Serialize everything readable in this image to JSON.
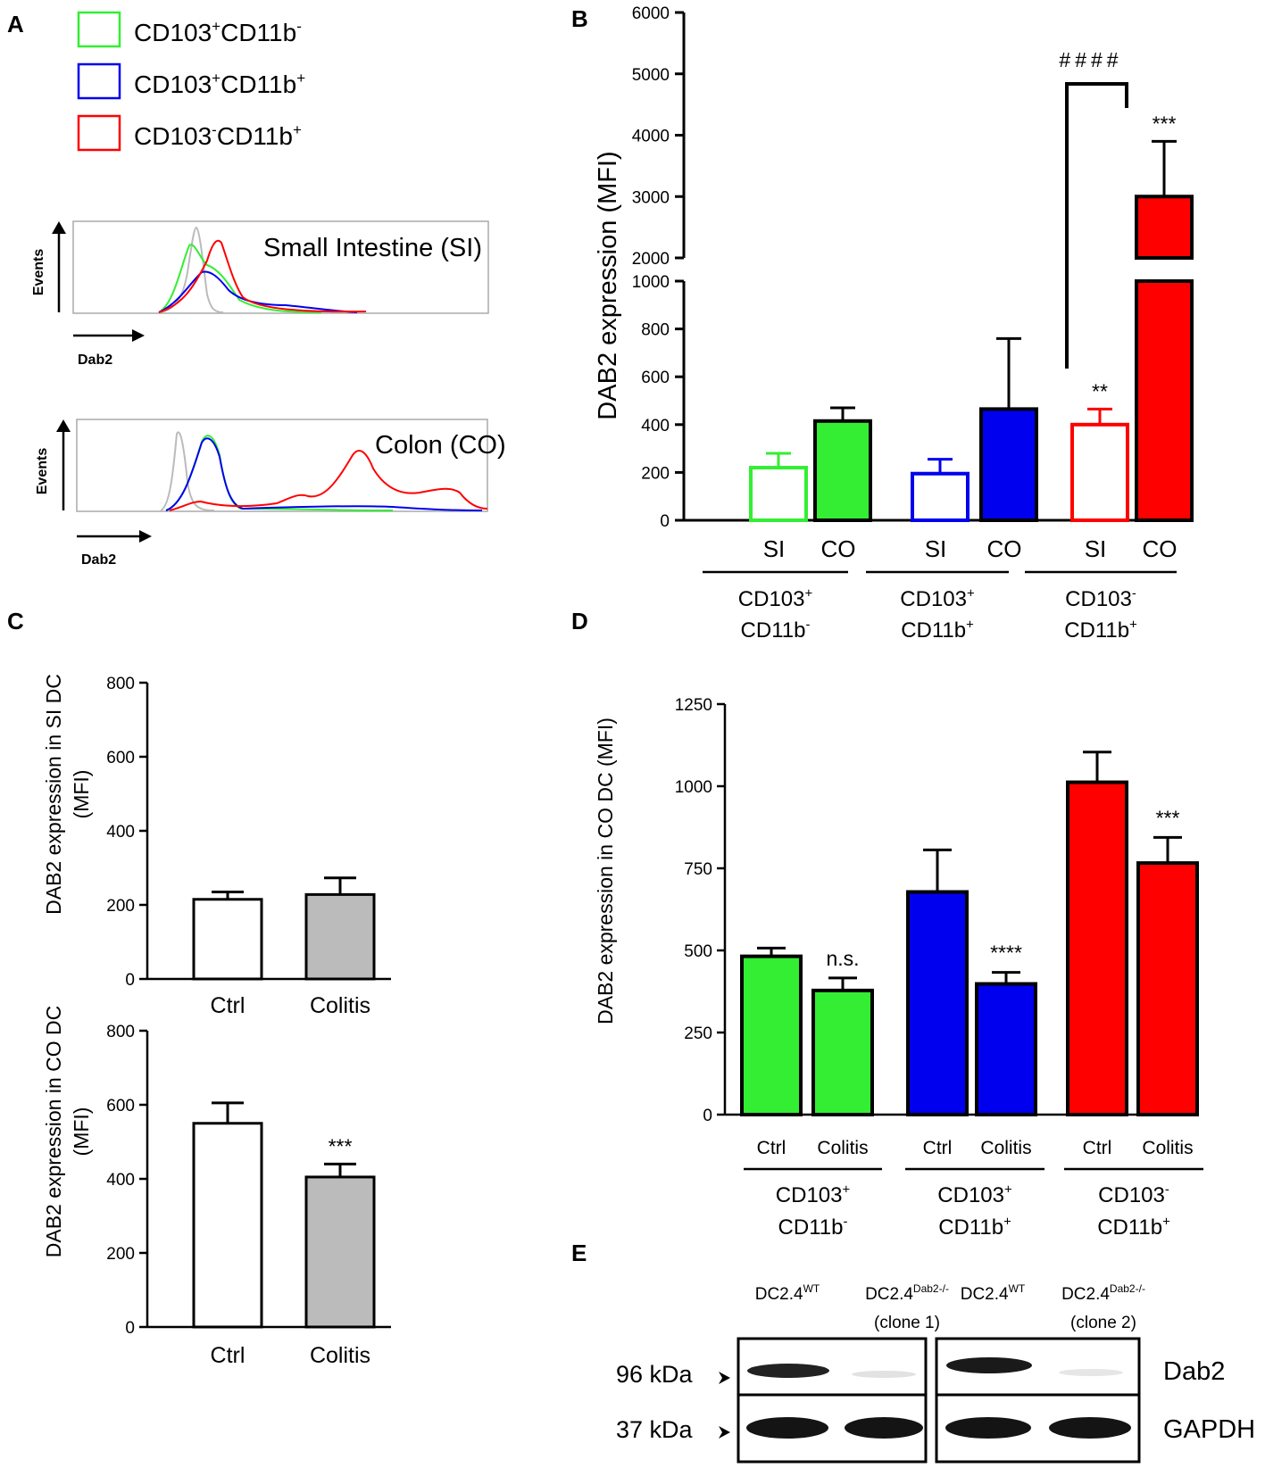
{
  "panel_labels": {
    "a": "A",
    "b": "B",
    "c": "C",
    "d": "D",
    "e": "E"
  },
  "colors": {
    "green": "#33ee33",
    "blue": "#0000ee",
    "red": "#ff0000",
    "grey": "#bbbbbb",
    "black": "#000000"
  },
  "chart_data": [
    {
      "id": "A",
      "type": "histogram",
      "legend": [
        {
          "sup_a": "+",
          "sup_b": "-",
          "color": "#33ee33"
        },
        {
          "sup_a": "+",
          "sup_b": "+",
          "color": "#0000ee"
        },
        {
          "sup_a": "-",
          "sup_b": "+",
          "color": "#ff0000"
        }
      ],
      "legend_main_a": "CD103",
      "legend_main_b": "CD11b",
      "plots": [
        {
          "title": "Small Intestine (SI)",
          "ylabel": "Events",
          "xlabel": "Dab2"
        },
        {
          "title": "Colon (CO)",
          "ylabel": "Events",
          "xlabel": "Dab2"
        }
      ]
    },
    {
      "id": "B",
      "type": "bar",
      "ylabel": "DAB2 expression (MFI)",
      "ylim_lower": [
        0,
        1000
      ],
      "ylim_upper": [
        2000,
        6000
      ],
      "yticks_lower": [
        "0",
        "200",
        "400",
        "600",
        "800",
        "1000"
      ],
      "yticks_upper": [
        "2000",
        "3000",
        "4000",
        "5000",
        "6000"
      ],
      "bars": [
        {
          "label": "SI",
          "value": 220,
          "error": 60,
          "color": "#33ee33",
          "filled": false,
          "annotation": ""
        },
        {
          "label": "CO",
          "value": 415,
          "error": 55,
          "color": "#33ee33",
          "filled": true,
          "annotation": ""
        },
        {
          "label": "SI",
          "value": 195,
          "error": 60,
          "color": "#0000ee",
          "filled": false,
          "annotation": ""
        },
        {
          "label": "CO",
          "value": 465,
          "error": 295,
          "color": "#0000ee",
          "filled": true,
          "annotation": ""
        },
        {
          "label": "SI",
          "value": 400,
          "error": 65,
          "color": "#ff0000",
          "filled": false,
          "annotation": "**"
        },
        {
          "label": "CO",
          "value": 3000,
          "error": 900,
          "color": "#ff0000",
          "filled": true,
          "annotation": "***"
        }
      ],
      "groups": [
        {
          "line1_main": "CD103",
          "line1_sup": "+",
          "line2_main": "CD11b",
          "line2_sup": "-"
        },
        {
          "line1_main": "CD103",
          "line1_sup": "+",
          "line2_main": "CD11b",
          "line2_sup": "+"
        },
        {
          "line1_main": "CD103",
          "line1_sup": "-",
          "line2_main": "CD11b",
          "line2_sup": "+"
        }
      ],
      "bracket_label": "####"
    },
    {
      "id": "C-top",
      "type": "bar",
      "ylabel_line1": "DAB2 expression in SI DC",
      "ylabel_line2": "(MFI)",
      "ylim": [
        0,
        800
      ],
      "yticks": [
        "0",
        "200",
        "400",
        "600",
        "800"
      ],
      "bars": [
        {
          "label": "Ctrl",
          "value": 215,
          "error": 20,
          "color": "#ffffff",
          "annotation": ""
        },
        {
          "label": "Colitis",
          "value": 228,
          "error": 45,
          "color": "#bbbbbb",
          "annotation": ""
        }
      ]
    },
    {
      "id": "C-bottom",
      "type": "bar",
      "ylabel_line1": "DAB2 expression in CO DC",
      "ylabel_line2": "(MFI)",
      "ylim": [
        0,
        800
      ],
      "yticks": [
        "0",
        "200",
        "400",
        "600",
        "800"
      ],
      "bars": [
        {
          "label": "Ctrl",
          "value": 550,
          "error": 55,
          "color": "#ffffff",
          "annotation": ""
        },
        {
          "label": "Colitis",
          "value": 405,
          "error": 35,
          "color": "#bbbbbb",
          "annotation": "***"
        }
      ]
    },
    {
      "id": "D",
      "type": "bar",
      "ylabel": "DAB2 expression in CO DC  (MFI)",
      "ylim": [
        0,
        1250
      ],
      "yticks": [
        "0",
        "250",
        "500",
        "750",
        "1000",
        "1250"
      ],
      "bars": [
        {
          "label": "Ctrl",
          "value": 482,
          "error": 25,
          "color": "#33ee33",
          "annotation": ""
        },
        {
          "label": "Colitis",
          "value": 378,
          "error": 38,
          "color": "#33ee33",
          "annotation": "n.s."
        },
        {
          "label": "Ctrl",
          "value": 678,
          "error": 128,
          "color": "#0000ee",
          "annotation": ""
        },
        {
          "label": "Colitis",
          "value": 398,
          "error": 35,
          "color": "#0000ee",
          "annotation": "****"
        },
        {
          "label": "Ctrl",
          "value": 1012,
          "error": 92,
          "color": "#ff0000",
          "annotation": ""
        },
        {
          "label": "Colitis",
          "value": 766,
          "error": 78,
          "color": "#ff0000",
          "annotation": "***"
        }
      ],
      "groups": [
        {
          "line1_main": "CD103",
          "line1_sup": "+",
          "line2_main": "CD11b",
          "line2_sup": "-"
        },
        {
          "line1_main": "CD103",
          "line1_sup": "+",
          "line2_main": "CD11b",
          "line2_sup": "+"
        },
        {
          "line1_main": "CD103",
          "line1_sup": "-",
          "line2_main": "CD11b",
          "line2_sup": "+"
        }
      ]
    },
    {
      "id": "E",
      "type": "blot",
      "lanes": [
        {
          "main": "DC2.4",
          "sup": "WT",
          "sub": ""
        },
        {
          "main": "DC2.4",
          "sup": "Dab2-/-",
          "sub": "(clone 1)"
        },
        {
          "main": "DC2.4",
          "sup": "WT",
          "sub": ""
        },
        {
          "main": "DC2.4",
          "sup": "Dab2-/-",
          "sub": "(clone 2)"
        }
      ],
      "rows": [
        {
          "marker": "96 kDa",
          "protein": "Dab2"
        },
        {
          "marker": "37 kDa",
          "protein": "GAPDH"
        }
      ]
    }
  ]
}
